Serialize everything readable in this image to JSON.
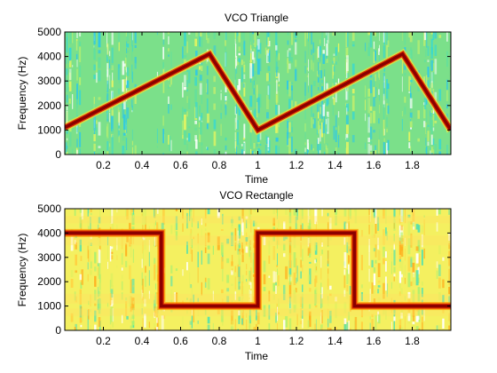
{
  "chart_data": [
    {
      "type": "heatmap",
      "title": "VCO Triangle",
      "xlabel": "Time",
      "ylabel": "Frequency (Hz)",
      "xlim": [
        0,
        2
      ],
      "ylim": [
        0,
        5000
      ],
      "xticks": [
        0.2,
        0.4,
        0.6,
        0.8,
        1,
        1.2,
        1.4,
        1.6,
        1.8
      ],
      "xtick_labels": [
        "0.2",
        "0.4",
        "0.6",
        "0.8",
        "1",
        "1.2",
        "1.4",
        "1.6",
        "1.8"
      ],
      "yticks": [
        0,
        1000,
        2000,
        3000,
        4000,
        5000
      ],
      "ytick_labels": [
        "0",
        "1000",
        "2000",
        "3000",
        "4000",
        "5000"
      ],
      "ridge": {
        "x": [
          0,
          0.75,
          1.0,
          1.75,
          2.0
        ],
        "y": [
          1100,
          4100,
          1000,
          4100,
          1000
        ]
      },
      "colors": {
        "background": "#7be08a",
        "ridge": "#8b0000",
        "ridge_halo": "#f0e030"
      }
    },
    {
      "type": "heatmap",
      "title": "VCO Rectangle",
      "xlabel": "Time",
      "ylabel": "Frequency (Hz)",
      "xlim": [
        0,
        2
      ],
      "ylim": [
        0,
        5000
      ],
      "xticks": [
        0.2,
        0.4,
        0.6,
        0.8,
        1,
        1.2,
        1.4,
        1.6,
        1.8
      ],
      "xtick_labels": [
        "0.2",
        "0.4",
        "0.6",
        "0.8",
        "1",
        "1.2",
        "1.4",
        "1.6",
        "1.8"
      ],
      "yticks": [
        0,
        1000,
        2000,
        3000,
        4000,
        5000
      ],
      "ytick_labels": [
        "0",
        "1000",
        "2000",
        "3000",
        "4000",
        "5000"
      ],
      "ridge": {
        "x": [
          0,
          0.5,
          0.5,
          1.0,
          1.0,
          1.5,
          1.5,
          2.0
        ],
        "y": [
          4000,
          4000,
          1000,
          1000,
          4000,
          4000,
          1000,
          1000
        ]
      },
      "colors": {
        "background": "#f4f060",
        "ridge": "#8b0000",
        "ridge_halo": "#ff9a00"
      }
    }
  ]
}
